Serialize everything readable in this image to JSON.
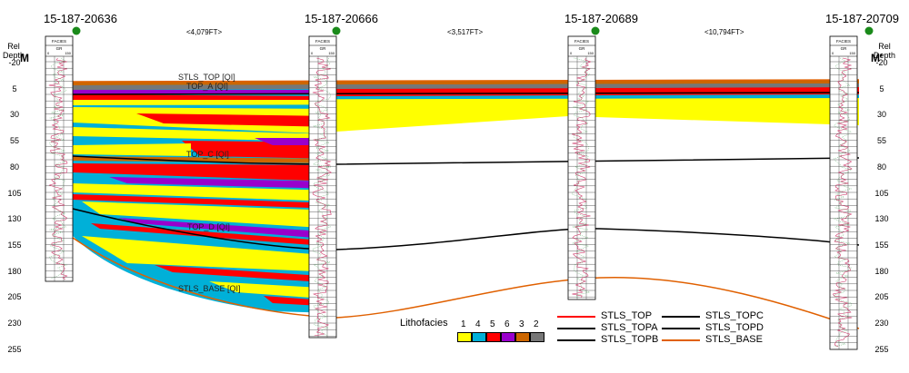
{
  "section": {
    "start_label": "M",
    "end_label": "M'"
  },
  "depth_axis": {
    "title_line1": "Rel",
    "title_line2": "Depth",
    "ticks": [
      "-20",
      "5",
      "30",
      "55",
      "80",
      "105",
      "130",
      "155",
      "180",
      "205",
      "230",
      "255"
    ]
  },
  "wells": [
    {
      "name": "15-187-20636",
      "track_label_top": "FACIES",
      "track_label_gr": "GR",
      "gr_min": "0",
      "gr_max": "150"
    },
    {
      "name": "15-187-20666",
      "track_label_top": "FACIES",
      "track_label_gr": "GR",
      "gr_min": "0",
      "gr_max": "150"
    },
    {
      "name": "15-187-20689",
      "track_label_top": "FACIES",
      "track_label_gr": "GR",
      "gr_min": "0",
      "gr_max": "150"
    },
    {
      "name": "15-187-20709",
      "track_label_top": "FACIES",
      "track_label_gr": "GR",
      "gr_min": "0",
      "gr_max": "150"
    }
  ],
  "distances": [
    "<4,079FT>",
    "<3,517FT>",
    "<10,794FT>"
  ],
  "horizon_labels": [
    "STLS_TOP [QI]",
    "TOP_A [QI]",
    "TOP_C [QI]",
    "TOP_D [QI]",
    "STLS_BASE [QI]"
  ],
  "lithofacies": {
    "title": "Lithofacies",
    "classes": [
      {
        "key": "1",
        "color": "#ffff00"
      },
      {
        "key": "4",
        "color": "#00b0d8"
      },
      {
        "key": "5",
        "color": "#ff0000"
      },
      {
        "key": "6",
        "color": "#9900cc"
      },
      {
        "key": "3",
        "color": "#cc6600"
      },
      {
        "key": "2",
        "color": "#777777"
      }
    ]
  },
  "horizon_legend": [
    {
      "name": "STLS_TOP",
      "color": "#ff0000"
    },
    {
      "name": "STLS_TOPA",
      "color": "#000000"
    },
    {
      "name": "STLS_TOPB",
      "color": "#000000"
    },
    {
      "name": "STLS_TOPC",
      "color": "#000000"
    },
    {
      "name": "STLS_TOPD",
      "color": "#000000"
    },
    {
      "name": "STLS_BASE",
      "color": "#e06000"
    }
  ],
  "well_marker_color": "#1a8a1a"
}
